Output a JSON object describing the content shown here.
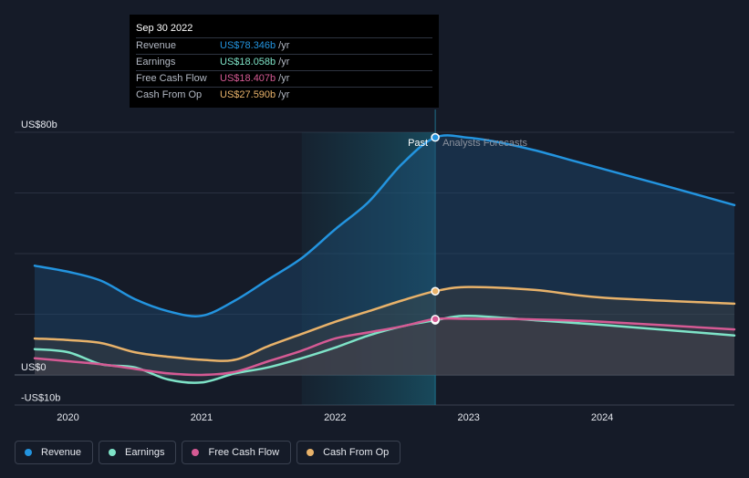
{
  "tooltip": {
    "date": "Sep 30 2022",
    "rows": [
      {
        "label": "Revenue",
        "value": "US$78.346b",
        "unit": "/yr",
        "color": "#2394df"
      },
      {
        "label": "Earnings",
        "value": "US$18.058b",
        "unit": "/yr",
        "color": "#7ee3c7"
      },
      {
        "label": "Free Cash Flow",
        "value": "US$18.407b",
        "unit": "/yr",
        "color": "#d55a94"
      },
      {
        "label": "Cash From Op",
        "value": "US$27.590b",
        "unit": "/yr",
        "color": "#e8b26a"
      }
    ]
  },
  "chart_data": {
    "type": "line",
    "title": "",
    "xlabel": "",
    "ylabel": "",
    "y_axis_labels": [
      "US$80b",
      "US$0",
      "-US$10b"
    ],
    "x_ticks": [
      "2020",
      "2021",
      "2022",
      "2023",
      "2024"
    ],
    "x_tick_values": [
      2020,
      2021,
      2022,
      2023,
      2024
    ],
    "xlim": [
      2019.6,
      2024.99
    ],
    "ylim": [
      -10,
      80
    ],
    "past_label": "Past",
    "forecast_label": "Analysts Forecasts",
    "past_end": 2022.75,
    "highlight_start": 2021.75,
    "series": [
      {
        "name": "Revenue",
        "color": "#2394df",
        "x": [
          2019.75,
          2020.0,
          2020.25,
          2020.5,
          2020.75,
          2021.0,
          2021.25,
          2021.5,
          2021.75,
          2022.0,
          2022.25,
          2022.5,
          2022.75,
          2023.0,
          2023.25,
          2023.5,
          2023.75,
          2024.0,
          2024.25,
          2024.5,
          2024.99
        ],
        "y": [
          36,
          34,
          31,
          25,
          21,
          19.5,
          24.5,
          31.5,
          38.5,
          48,
          57,
          69.5,
          78.3,
          78.2,
          76.5,
          74,
          71,
          68,
          65,
          62,
          56
        ]
      },
      {
        "name": "Earnings",
        "color": "#7ee3c7",
        "x": [
          2019.75,
          2020.0,
          2020.25,
          2020.5,
          2020.75,
          2021.0,
          2021.25,
          2021.5,
          2021.75,
          2022.0,
          2022.25,
          2022.5,
          2022.75,
          2023.0,
          2023.5,
          2024.0,
          2024.99
        ],
        "y": [
          8.5,
          7.5,
          3.5,
          2.5,
          -1.5,
          -2.5,
          0.5,
          2.5,
          5.5,
          9,
          13,
          16,
          18,
          19.5,
          18,
          16.5,
          13
        ]
      },
      {
        "name": "Free Cash Flow",
        "color": "#d55a94",
        "x": [
          2019.75,
          2020.0,
          2020.25,
          2020.5,
          2020.75,
          2021.0,
          2021.25,
          2021.5,
          2021.75,
          2022.0,
          2022.25,
          2022.5,
          2022.75,
          2023.0,
          2023.5,
          2024.0,
          2024.99
        ],
        "y": [
          5.5,
          4.5,
          3.5,
          2,
          0.5,
          0,
          1,
          4.5,
          8,
          12,
          14,
          16,
          18.4,
          18.5,
          18.3,
          17.5,
          15
        ]
      },
      {
        "name": "Cash From Op",
        "color": "#e8b26a",
        "x": [
          2019.75,
          2020.0,
          2020.25,
          2020.5,
          2020.75,
          2021.0,
          2021.25,
          2021.5,
          2021.75,
          2022.0,
          2022.25,
          2022.5,
          2022.75,
          2023.0,
          2023.5,
          2024.0,
          2024.99
        ],
        "y": [
          12,
          11.5,
          10.5,
          7.5,
          6,
          5,
          5,
          9.5,
          13.5,
          17.5,
          21,
          24.5,
          27.6,
          29,
          28,
          25.5,
          23.5
        ]
      }
    ]
  },
  "legend": [
    {
      "label": "Revenue",
      "color": "#2394df"
    },
    {
      "label": "Earnings",
      "color": "#7ee3c7"
    },
    {
      "label": "Free Cash Flow",
      "color": "#d55a94"
    },
    {
      "label": "Cash From Op",
      "color": "#e8b26a"
    }
  ]
}
